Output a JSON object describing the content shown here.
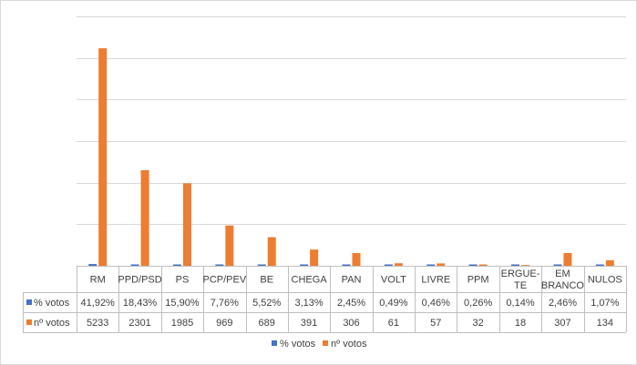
{
  "chart_data": {
    "type": "bar",
    "title": "",
    "xlabel": "",
    "ylabel": "",
    "ylim": [
      0,
      6000
    ],
    "y_gridlines": [
      1000,
      2000,
      3000,
      4000,
      5000,
      6000
    ],
    "grid": true,
    "categories": [
      [
        "RM"
      ],
      [
        "PPD/PSD"
      ],
      [
        "PS"
      ],
      [
        "PCP/PEV"
      ],
      [
        "BE"
      ],
      [
        "CHEGA"
      ],
      [
        "PAN"
      ],
      [
        "VOLT"
      ],
      [
        "LIVRE"
      ],
      [
        "PPM"
      ],
      [
        "ERGUE-",
        "TE"
      ],
      [
        "EM",
        "BRANCO"
      ],
      [
        "NULOS"
      ]
    ],
    "series": [
      {
        "name": "% votos",
        "color": "#4472c4",
        "values": [
          41.92,
          18.43,
          15.9,
          7.76,
          5.52,
          3.13,
          2.45,
          0.49,
          0.46,
          0.26,
          0.14,
          2.46,
          1.07
        ],
        "labels": [
          "41,92%",
          "18,43%",
          "15,90%",
          "7,76%",
          "5,52%",
          "3,13%",
          "2,45%",
          "0,49%",
          "0,46%",
          "0,26%",
          "0,14%",
          "2,46%",
          "1,07%"
        ]
      },
      {
        "name": "nº votos",
        "color": "#ed7d31",
        "values": [
          5233,
          2301,
          1985,
          969,
          689,
          391,
          306,
          61,
          57,
          32,
          18,
          307,
          134
        ],
        "labels": [
          "5233",
          "2301",
          "1985",
          "969",
          "689",
          "391",
          "306",
          "61",
          "57",
          "32",
          "18",
          "307",
          "134"
        ]
      }
    ],
    "legend_position": "bottom",
    "data_table": true
  }
}
